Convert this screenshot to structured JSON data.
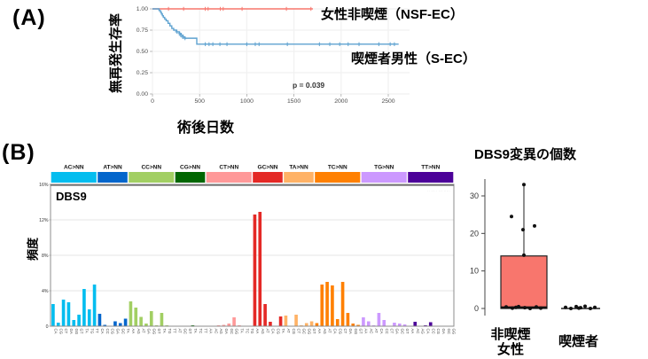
{
  "panel_a": {
    "label": "(A)",
    "ylabel": "無再発生存率",
    "xlabel": "術後日数",
    "series_red_label": "女性非喫煙（NSF-EC）",
    "series_blue_label": "喫煙者男性（S-EC）"
  },
  "panel_b": {
    "label": "(B)",
    "ylabel": "頻度",
    "boxplot": {
      "title": "DBS9変異の個数",
      "xlabel_group1_line1": "非喫煙",
      "xlabel_group1_line2": "女性",
      "xlabel_group2": "喫煙者"
    }
  },
  "chart_data": [
    {
      "type": "line",
      "subtype": "kaplan-meier",
      "xlabel": "術後日数",
      "ylabel": "無再発生存率",
      "xlim": [
        0,
        2700
      ],
      "ylim": [
        0,
        1.0
      ],
      "xticks": [
        0,
        500,
        1000,
        1500,
        2000,
        2500
      ],
      "yticks": [
        "0.00",
        "0.25",
        "0.50",
        "0.75",
        "1.00"
      ],
      "grid": true,
      "annotation": "p = 0.039",
      "series": [
        {
          "name": "女性非喫煙（NSF-EC）",
          "color": "#F8766D",
          "steps": [
            [
              0,
              1.0
            ],
            [
              1700,
              1.0
            ]
          ],
          "censors": [
            [
              170,
              1.0
            ],
            [
              330,
              1.0
            ],
            [
              560,
              1.0
            ],
            [
              590,
              1.0
            ],
            [
              720,
              1.0
            ],
            [
              750,
              1.0
            ],
            [
              950,
              1.0
            ],
            [
              1420,
              1.0
            ],
            [
              1680,
              1.0
            ]
          ]
        },
        {
          "name": "喫煙者男性（S-EC）",
          "color": "#5EA2D0",
          "steps": [
            [
              0,
              1.0
            ],
            [
              70,
              0.98
            ],
            [
              85,
              0.96
            ],
            [
              95,
              0.94
            ],
            [
              105,
              0.92
            ],
            [
              115,
              0.9
            ],
            [
              130,
              0.88
            ],
            [
              145,
              0.86
            ],
            [
              165,
              0.83
            ],
            [
              185,
              0.8
            ],
            [
              205,
              0.77
            ],
            [
              225,
              0.75
            ],
            [
              255,
              0.73
            ],
            [
              285,
              0.71
            ],
            [
              305,
              0.69
            ],
            [
              325,
              0.67
            ],
            [
              345,
              0.655
            ],
            [
              470,
              0.585
            ],
            [
              2610,
              0.585
            ]
          ],
          "censors": [
            [
              260,
              0.73
            ],
            [
              290,
              0.71
            ],
            [
              300,
              0.69
            ],
            [
              320,
              0.67
            ],
            [
              345,
              0.655
            ],
            [
              560,
              0.585
            ],
            [
              600,
              0.585
            ],
            [
              640,
              0.585
            ],
            [
              715,
              0.585
            ],
            [
              790,
              0.585
            ],
            [
              1000,
              0.585
            ],
            [
              1090,
              0.585
            ],
            [
              1130,
              0.585
            ],
            [
              1430,
              0.585
            ],
            [
              1770,
              0.585
            ],
            [
              1880,
              0.585
            ],
            [
              1985,
              0.585
            ],
            [
              2075,
              0.585
            ],
            [
              2190,
              0.585
            ],
            [
              2400,
              0.585
            ],
            [
              2520,
              0.585
            ],
            [
              2565,
              0.585
            ]
          ]
        }
      ]
    },
    {
      "type": "bar",
      "subtype": "doublet-base-substitution-signature",
      "title": "DBS9",
      "ylabel": "頻度",
      "ylim": [
        0,
        16
      ],
      "yticks": [
        0,
        4,
        8,
        12,
        16
      ],
      "ytick_labels": [
        "0",
        "4%",
        "8%",
        "12%",
        "16%"
      ],
      "faint_stats_text": "·· ··· ·  ··· ·····",
      "groups": [
        {
          "label": "AC>NN",
          "color": "#03BDEF",
          "categories": [
            "CA",
            "CG",
            "CT",
            "GA",
            "GG",
            "GT",
            "TA",
            "TG",
            "TT"
          ],
          "values": [
            2.5,
            0.4,
            3.0,
            2.7,
            0.7,
            1.3,
            4.2,
            1.9,
            4.7
          ]
        },
        {
          "label": "AT>NN",
          "color": "#0366CC",
          "categories": [
            "CA",
            "CC",
            "CG",
            "GA",
            "GC",
            "TA"
          ],
          "values": [
            1.4,
            0.15,
            0.05,
            0.55,
            0.35,
            0.85
          ]
        },
        {
          "label": "CC>NN",
          "color": "#A2CF63",
          "categories": [
            "AA",
            "AG",
            "AT",
            "GA",
            "GG",
            "GT",
            "TA",
            "TG",
            "TT"
          ],
          "values": [
            2.8,
            2.1,
            1.05,
            0.3,
            1.7,
            0.1,
            1.5,
            0.1,
            0.05
          ]
        },
        {
          "label": "CG>NN",
          "color": "#016601",
          "categories": [
            "AT",
            "GC",
            "GT",
            "TA",
            "TC",
            "TT"
          ],
          "values": [
            0.05,
            0.02,
            0.02,
            0.1,
            0.02,
            0.05
          ]
        },
        {
          "label": "CT>NN",
          "color": "#FF9999",
          "categories": [
            "AA",
            "AC",
            "AG",
            "GA",
            "GC",
            "GG",
            "TA",
            "TC",
            "TG"
          ],
          "values": [
            0.02,
            0.02,
            0.1,
            0.15,
            0.3,
            1.0,
            0.1,
            0.02,
            0.02
          ]
        },
        {
          "label": "GC>NN",
          "color": "#E42926",
          "categories": [
            "AA",
            "AG",
            "AT",
            "CA",
            "CG",
            "TA"
          ],
          "values": [
            12.6,
            12.9,
            2.5,
            0.5,
            0.05,
            1.1
          ]
        },
        {
          "label": "TA>NN",
          "color": "#FFB266",
          "categories": [
            "AT",
            "CG",
            "CT",
            "GC",
            "GG",
            "GT"
          ],
          "values": [
            1.2,
            0.05,
            1.3,
            0.1,
            0.35,
            0.55
          ]
        },
        {
          "label": "TC>NN",
          "color": "#FF8001",
          "categories": [
            "AA",
            "AG",
            "AT",
            "CA",
            "CG",
            "CT",
            "GA",
            "GG",
            "GT"
          ],
          "values": [
            0.35,
            4.7,
            5.0,
            4.6,
            0.8,
            5.0,
            1.5,
            0.3,
            0.15
          ]
        },
        {
          "label": "TG>NN",
          "color": "#CC99FF",
          "categories": [
            "AA",
            "AC",
            "AT",
            "CA",
            "CC",
            "CT",
            "GA",
            "GC",
            "GT"
          ],
          "values": [
            1.0,
            0.55,
            0.1,
            1.5,
            0.7,
            0.05,
            0.4,
            0.3,
            0.2
          ]
        },
        {
          "label": "TT>NN",
          "color": "#4C0199",
          "categories": [
            "AA",
            "AC",
            "AG",
            "CA",
            "CC",
            "CG",
            "GA",
            "GC",
            "GG"
          ],
          "values": [
            0.05,
            0.5,
            0.05,
            0.1,
            0.45,
            0.02,
            0.05,
            0.02,
            0.05
          ]
        }
      ]
    },
    {
      "type": "boxplot",
      "title": "DBS9変異の個数",
      "ylim": [
        0,
        35
      ],
      "yticks": [
        0,
        10,
        20,
        30
      ],
      "groups": [
        {
          "label": "非喫煙女性",
          "fill": "#F8766D",
          "box": {
            "q1": 0,
            "median": 0.3,
            "q3": 14,
            "whisker_high": 33,
            "whisker_low": 0
          },
          "points": [
            33,
            24.5,
            22,
            21,
            14.2,
            0.4,
            0.1,
            0.5,
            0.2,
            0,
            0.4,
            0.1,
            0.3
          ]
        },
        {
          "label": "喫煙者",
          "fill": "#F8766D",
          "box": null,
          "line_at": 0,
          "points": [
            0.3,
            0,
            0.5,
            0.2,
            0.6,
            0,
            0.3,
            0.1
          ]
        }
      ]
    }
  ]
}
